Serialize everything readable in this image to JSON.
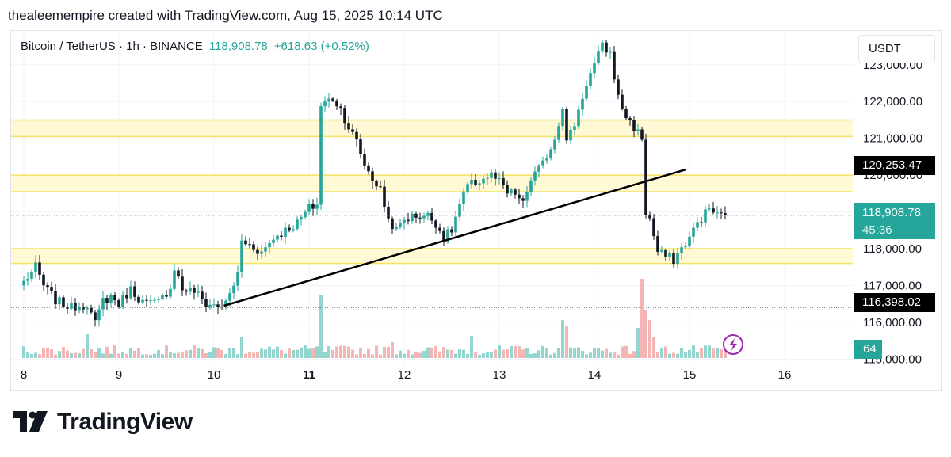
{
  "header": {
    "attribution": "thealeemempire created with TradingView.com, Aug 15, 2025 10:14 UTC"
  },
  "legend": {
    "symbol": "Bitcoin / TetherUS · 1h · BINANCE",
    "last_price": "118,908.78",
    "change": "+618.63 (+0.52%)"
  },
  "currency_button": "USDT",
  "price_tags": {
    "resistance_level": "120,253.47",
    "current_price": "118,908.78",
    "countdown": "45:36",
    "support_level": "116,398.02",
    "volume": "64"
  },
  "logo": {
    "wordmark": "TradingView"
  },
  "colors": {
    "up": "#26a69a",
    "down": "#131722",
    "volume_up": "#7fcfc7",
    "volume_down": "#f2a8a8",
    "zone_fill": "#fff9d6",
    "zone_line": "#f5e063",
    "trendline": "#000000",
    "tag_dark": "#000000",
    "tag_green": "#26a69a",
    "lightning": "#9c27b0"
  },
  "chart_data": {
    "type": "candlestick",
    "title": "Bitcoin / TetherUS · 1h · BINANCE",
    "x_labels": [
      {
        "label": "8",
        "idx": 0,
        "bold": false
      },
      {
        "label": "9",
        "idx": 24,
        "bold": false
      },
      {
        "label": "10",
        "idx": 48,
        "bold": false
      },
      {
        "label": "11",
        "idx": 72,
        "bold": true
      },
      {
        "label": "12",
        "idx": 96,
        "bold": false
      },
      {
        "label": "13",
        "idx": 120,
        "bold": false
      },
      {
        "label": "14",
        "idx": 144,
        "bold": false
      },
      {
        "label": "15",
        "idx": 168,
        "bold": false
      },
      {
        "label": "16",
        "idx": 192,
        "bold": false
      }
    ],
    "y_ticks": [
      {
        "value": 115000,
        "label": "115,000.00"
      },
      {
        "value": 116000,
        "label": "116,000.00"
      },
      {
        "value": 117000,
        "label": "117,000.00"
      },
      {
        "value": 118000,
        "label": "118,000.00"
      },
      {
        "value": 119000,
        "label": ""
      },
      {
        "value": 120000,
        "label": "120,000.00"
      },
      {
        "value": 121000,
        "label": "121,000.00"
      },
      {
        "value": 122000,
        "label": "122,000.00"
      },
      {
        "value": 123000,
        "label": "123,000.00"
      }
    ],
    "ylim": [
      114900,
      123900
    ],
    "zones": [
      {
        "low": 121050,
        "high": 121500
      },
      {
        "low": 119550,
        "high": 120000
      },
      {
        "low": 117600,
        "high": 118000
      }
    ],
    "trendline": {
      "from": {
        "idx": 50.5,
        "price": 116450
      },
      "to": {
        "idx": 167,
        "price": 120150
      }
    },
    "current_price": 118908.78,
    "support_level": 116398.02,
    "resistance_level": 120253.47,
    "waypoints": [
      [
        0,
        117100
      ],
      [
        3,
        117500
      ],
      [
        5,
        117000
      ],
      [
        8,
        116600
      ],
      [
        12,
        116400
      ],
      [
        16,
        116500
      ],
      [
        18,
        115950
      ],
      [
        20,
        116600
      ],
      [
        22,
        116700
      ],
      [
        24,
        116500
      ],
      [
        27,
        116900
      ],
      [
        30,
        116550
      ],
      [
        32,
        116500
      ],
      [
        34,
        116550
      ],
      [
        37,
        116950
      ],
      [
        38,
        117500
      ],
      [
        40,
        116900
      ],
      [
        43,
        116850
      ],
      [
        46,
        116500
      ],
      [
        49,
        116450
      ],
      [
        51,
        116500
      ],
      [
        54,
        117300
      ],
      [
        55,
        118200
      ],
      [
        57,
        118100
      ],
      [
        60,
        117900
      ],
      [
        63,
        118300
      ],
      [
        66,
        118500
      ],
      [
        69,
        118700
      ],
      [
        72,
        119100
      ],
      [
        74,
        119200
      ],
      [
        75,
        121900
      ],
      [
        78,
        122100
      ],
      [
        80,
        121800
      ],
      [
        82,
        121300
      ],
      [
        84,
        120900
      ],
      [
        86,
        120300
      ],
      [
        88,
        119900
      ],
      [
        90,
        119600
      ],
      [
        92,
        118800
      ],
      [
        94,
        118500
      ],
      [
        96,
        118800
      ],
      [
        99,
        118900
      ],
      [
        102,
        118900
      ],
      [
        104,
        118700
      ],
      [
        106,
        118300
      ],
      [
        108,
        118500
      ],
      [
        110,
        119200
      ],
      [
        112,
        119700
      ],
      [
        114,
        119800
      ],
      [
        116,
        119900
      ],
      [
        118,
        120000
      ],
      [
        120,
        119800
      ],
      [
        122,
        119500
      ],
      [
        124,
        119500
      ],
      [
        126,
        119200
      ],
      [
        128,
        119900
      ],
      [
        131,
        120300
      ],
      [
        134,
        121000
      ],
      [
        136,
        121900
      ],
      [
        137,
        120900
      ],
      [
        139,
        121400
      ],
      [
        142,
        122500
      ],
      [
        144,
        123000
      ],
      [
        146,
        123500
      ],
      [
        148,
        123300
      ],
      [
        150,
        122100
      ],
      [
        152,
        121600
      ],
      [
        154,
        121300
      ],
      [
        156,
        121000
      ],
      [
        156.5,
        119050
      ],
      [
        158,
        118800
      ],
      [
        160,
        117900
      ],
      [
        162,
        117800
      ],
      [
        164,
        117700
      ],
      [
        166,
        118000
      ],
      [
        168,
        118300
      ],
      [
        170,
        118700
      ],
      [
        173,
        119100
      ],
      [
        175,
        118900
      ],
      [
        177,
        118900
      ]
    ],
    "volume_spikes": [
      [
        16,
        30
      ],
      [
        55,
        26
      ],
      [
        75,
        80
      ],
      [
        93,
        20
      ],
      [
        113,
        28
      ],
      [
        136,
        48
      ],
      [
        137,
        40
      ],
      [
        155,
        38
      ],
      [
        156,
        100
      ],
      [
        157,
        60
      ],
      [
        158,
        48
      ],
      [
        159,
        26
      ]
    ],
    "last_volume": 64
  }
}
